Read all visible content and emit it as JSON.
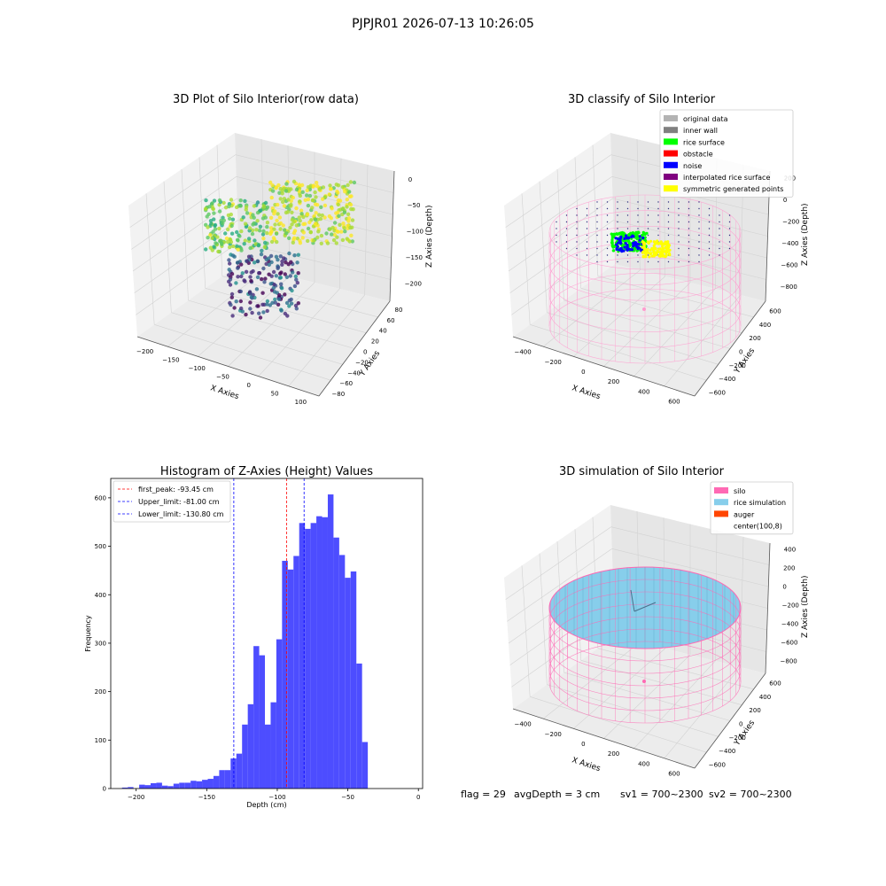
{
  "suptitle": "PJPJR01 2026-07-13 10:26:05",
  "chart_data": [
    {
      "type": "scatter",
      "title": "3D Plot of Silo Interior(row data)",
      "xlabel": "X Axies",
      "ylabel": "Y Axies",
      "zlabel": "Z Axies (Depth)",
      "x_ticks": [
        "−200",
        "−150",
        "−100",
        "−50",
        "0",
        "50",
        "100"
      ],
      "y_ticks": [
        "−80",
        "−60",
        "−40",
        "−20",
        "0",
        "20",
        "40",
        "60",
        "80"
      ],
      "z_ticks": [
        "0",
        "−50",
        "−100",
        "−150",
        "−200"
      ],
      "colormap": "viridis",
      "grid": true
    },
    {
      "type": "scatter",
      "title": "3D classify of Silo Interior",
      "xlabel": "X Axies",
      "ylabel": "Y Axies",
      "zlabel": "Z Axies (Depth)",
      "x_ticks": [
        "−400",
        "−200",
        "0",
        "200",
        "400",
        "600"
      ],
      "y_ticks": [
        "−600",
        "−400",
        "−200",
        "0",
        "200",
        "400",
        "600"
      ],
      "z_ticks": [
        "200",
        "0",
        "−200",
        "−400",
        "−600",
        "−800"
      ],
      "legend_placement": "top-right",
      "legend": [
        {
          "label": "original data",
          "color": "#b3b3b3"
        },
        {
          "label": "inner wall",
          "color": "#808080"
        },
        {
          "label": "rice surface",
          "color": "#00ff00"
        },
        {
          "label": "obstacle",
          "color": "#ff0000"
        },
        {
          "label": "noise",
          "color": "#0000ff"
        },
        {
          "label": "interpolated rice surface",
          "color": "#800080"
        },
        {
          "label": "symmetric generated points",
          "color": "#ffff00"
        }
      ],
      "wall_color": "#ff9ccf",
      "grid": true
    },
    {
      "type": "bar",
      "title": "Histogram of Z-Axies (Height) Values",
      "xlabel": "Depth (cm)",
      "ylabel": "Frequency",
      "xlim": [
        -218,
        3
      ],
      "ylim": [
        0,
        640
      ],
      "x_ticks": [
        -200,
        -150,
        -100,
        -50,
        0
      ],
      "y_ticks": [
        0,
        100,
        200,
        300,
        400,
        500,
        600
      ],
      "bar_color": "#4d4dff",
      "bin_start": -210,
      "bin_width": 4.05,
      "values": [
        2,
        3,
        0,
        8,
        7,
        11,
        12,
        6,
        5,
        10,
        12,
        12,
        16,
        15,
        18,
        20,
        26,
        38,
        38,
        62,
        72,
        132,
        174,
        294,
        275,
        132,
        178,
        308,
        470,
        452,
        480,
        548,
        536,
        548,
        562,
        560,
        607,
        518,
        482,
        435,
        448,
        258,
        96
      ],
      "lines": [
        {
          "label": "first_peak: -93.45 cm",
          "x": -93.45,
          "color": "#ff0000"
        },
        {
          "label": "Upper_limit: -81.00 cm",
          "x": -81.0,
          "color": "#0000ff"
        },
        {
          "label": "Lower_limit: -130.80 cm",
          "x": -130.8,
          "color": "#0000ff"
        }
      ],
      "legend_placement": "top-left",
      "grid": false
    },
    {
      "type": "scatter",
      "title": "3D simulation of Silo Interior",
      "xlabel": "X Axies",
      "ylabel": "Y Axies",
      "zlabel": "Z Axies (Depth)",
      "x_ticks": [
        "−400",
        "−200",
        "0",
        "200",
        "400",
        "600"
      ],
      "y_ticks": [
        "−600",
        "−400",
        "−200",
        "0",
        "200",
        "400",
        "600"
      ],
      "z_ticks": [
        "400",
        "200",
        "0",
        "−200",
        "−400",
        "−600",
        "−800"
      ],
      "legend_placement": "top-right",
      "legend": [
        {
          "label": "silo",
          "color": "#ff69b4"
        },
        {
          "label": "rice simulation",
          "color": "#87ceeb"
        },
        {
          "label": "auger",
          "color": "#ff4500"
        },
        {
          "label": "center(100,8)",
          "color": "#ffffff"
        }
      ],
      "grid": true
    }
  ],
  "status": {
    "flag": "flag = 29",
    "avg_depth": "avgDepth = 3 cm",
    "sv1": "sv1 = 700~2300",
    "sv2": "sv2 = 700~2300"
  }
}
